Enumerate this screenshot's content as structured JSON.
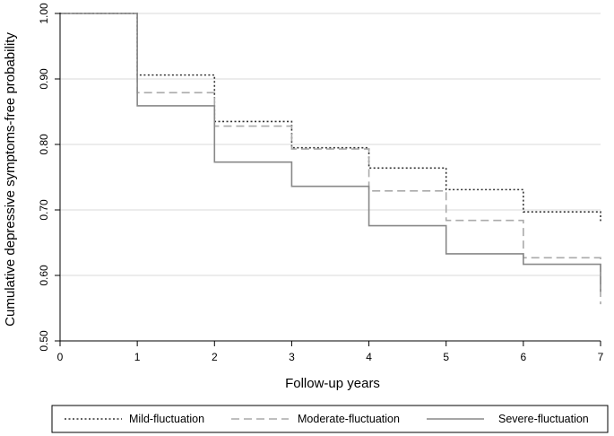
{
  "chart_data": {
    "type": "line",
    "step": true,
    "xlabel": "Follow-up years",
    "ylabel": "Cumulative depressive symptoms-free probability",
    "xlim": [
      0,
      7
    ],
    "ylim": [
      0.5,
      1.0
    ],
    "x_ticks": [
      "0",
      "1",
      "2",
      "3",
      "4",
      "5",
      "6",
      "7"
    ],
    "y_ticks": [
      "1.00",
      "0.90",
      "0.80",
      "0.70",
      "0.60",
      "0.50"
    ],
    "grid": "horizontal",
    "legend_position": "bottom",
    "series": [
      {
        "name": "Mild-fluctuation",
        "style": "dotted",
        "color": "#333333",
        "points": [
          [
            0,
            1.0
          ],
          [
            1,
            0.906
          ],
          [
            2,
            0.835
          ],
          [
            3,
            0.795
          ],
          [
            4,
            0.764
          ],
          [
            5,
            0.731
          ],
          [
            6,
            0.697
          ],
          [
            7,
            0.683
          ]
        ]
      },
      {
        "name": "Moderate-fluctuation",
        "style": "dashed",
        "color": "#aaaaaa",
        "points": [
          [
            0,
            1.0
          ],
          [
            1,
            0.879
          ],
          [
            2,
            0.828
          ],
          [
            3,
            0.793
          ],
          [
            4,
            0.729
          ],
          [
            5,
            0.684
          ],
          [
            6,
            0.627
          ],
          [
            7,
            0.556
          ]
        ]
      },
      {
        "name": "Severe-fluctuation",
        "style": "solid",
        "color": "#888888",
        "points": [
          [
            0,
            1.0
          ],
          [
            1,
            0.859
          ],
          [
            2,
            0.773
          ],
          [
            3,
            0.736
          ],
          [
            4,
            0.676
          ],
          [
            5,
            0.633
          ],
          [
            6,
            0.617
          ],
          [
            7,
            0.575
          ]
        ]
      }
    ]
  }
}
